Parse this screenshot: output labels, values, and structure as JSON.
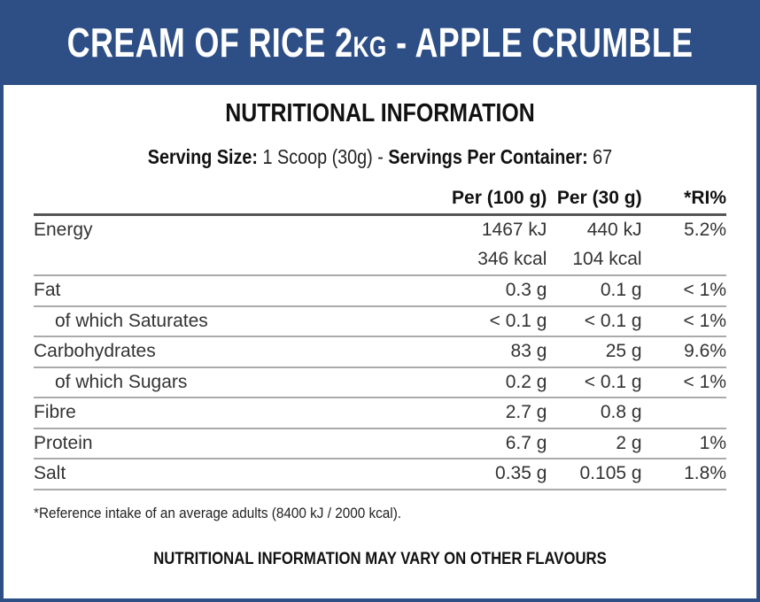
{
  "header": {
    "title_main": "CREAM OF RICE 2",
    "title_unit": "KG",
    "title_rest": " - APPLE CRUMBLE",
    "bg_color": "#2d4f86"
  },
  "heading": "NUTRITIONAL INFORMATION",
  "serving": {
    "size_label": "Serving Size:",
    "size_value": " 1 Scoop (30g) - ",
    "per_container_label": "Servings Per Container:",
    "per_container_value": " 67"
  },
  "table": {
    "columns": [
      "",
      "Per (100 g)",
      "Per (30 g)",
      "*RI%"
    ],
    "rows": [
      {
        "label": "Energy",
        "per100": "1467 kJ",
        "per30": "440 kJ",
        "ri": "5.2%"
      },
      {
        "label": "",
        "per100": "346 kcal",
        "per30": "104 kcal",
        "ri": ""
      },
      {
        "label": "Fat",
        "per100": "0.3 g",
        "per30": "0.1 g",
        "ri": "< 1%"
      },
      {
        "label": "of which Saturates",
        "per100": "< 0.1 g",
        "per30": "< 0.1 g",
        "ri": "< 1%"
      },
      {
        "label": "Carbohydrates",
        "per100": "83 g",
        "per30": "25 g",
        "ri": "9.6%"
      },
      {
        "label": "of which Sugars",
        "per100": "0.2 g",
        "per30": "< 0.1 g",
        "ri": "< 1%"
      },
      {
        "label": "Fibre",
        "per100": "2.7 g",
        "per30": "0.8 g",
        "ri": ""
      },
      {
        "label": "Protein",
        "per100": "6.7 g",
        "per30": "2 g",
        "ri": "1%"
      },
      {
        "label": "Salt",
        "per100": "0.35 g",
        "per30": "0.105 g",
        "ri": "1.8%"
      }
    ]
  },
  "note": "*Reference intake of an average adults (8400 kJ / 2000 kcal).",
  "footer": "NUTRITIONAL INFORMATION MAY VARY ON OTHER FLAVOURS"
}
